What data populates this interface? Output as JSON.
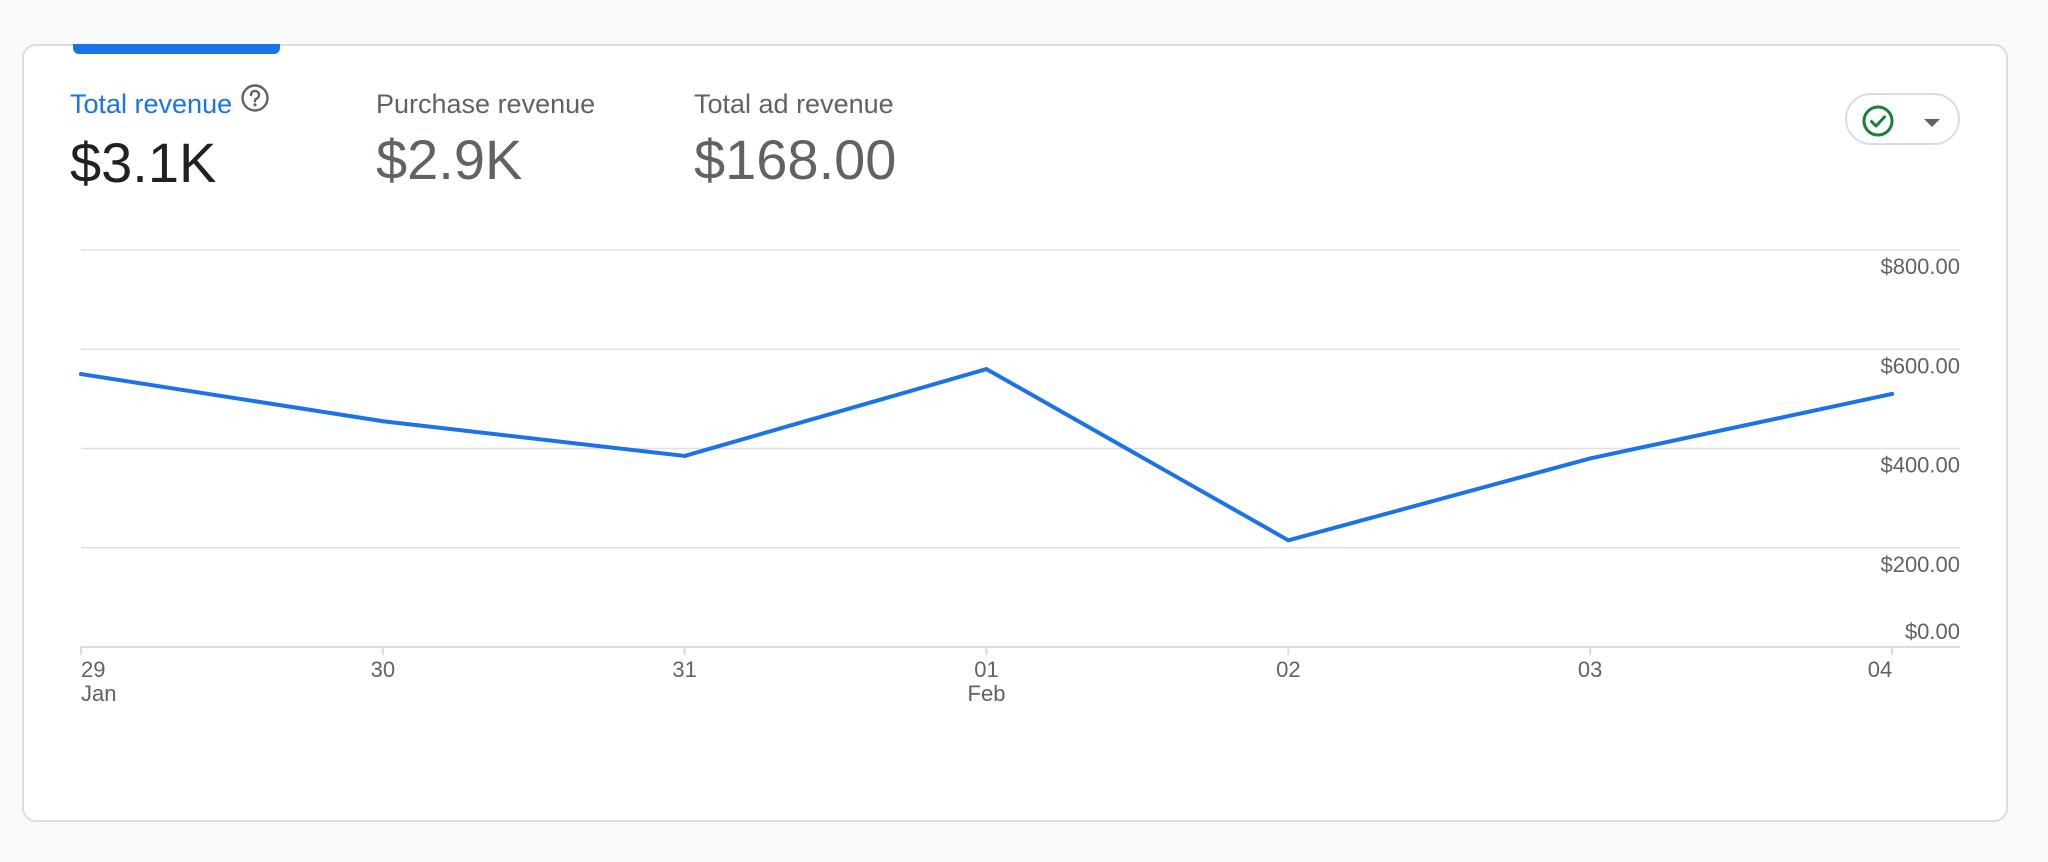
{
  "metrics": [
    {
      "label": "Total revenue",
      "value": "$3.1K"
    },
    {
      "label": "Purchase revenue",
      "value": "$2.9K"
    },
    {
      "label": "Total ad revenue",
      "value": "$168.00"
    }
  ],
  "colors": {
    "accent": "#1a73e8",
    "status_ok": "#188038",
    "grid": "#e0e0e0"
  },
  "icons": {
    "help": "help-circle-icon",
    "status": "check-circle-icon",
    "dropdown": "caret-down-icon"
  },
  "chart_data": {
    "type": "line",
    "categories": [
      "29 Jan",
      "30",
      "31",
      "01 Feb",
      "02",
      "03",
      "04"
    ],
    "x_ticks": [
      {
        "day": "29",
        "month": "Jan"
      },
      {
        "day": "30",
        "month": ""
      },
      {
        "day": "31",
        "month": ""
      },
      {
        "day": "01",
        "month": "Feb"
      },
      {
        "day": "02",
        "month": ""
      },
      {
        "day": "03",
        "month": ""
      },
      {
        "day": "04",
        "month": ""
      }
    ],
    "series": [
      {
        "values": [
          550,
          455,
          385,
          560,
          215,
          380,
          510
        ]
      }
    ],
    "ylim": [
      0,
      800
    ],
    "y_ticks": [
      "$0.00",
      "$200.00",
      "$400.00",
      "$600.00",
      "$800.00"
    ],
    "grid": true
  }
}
